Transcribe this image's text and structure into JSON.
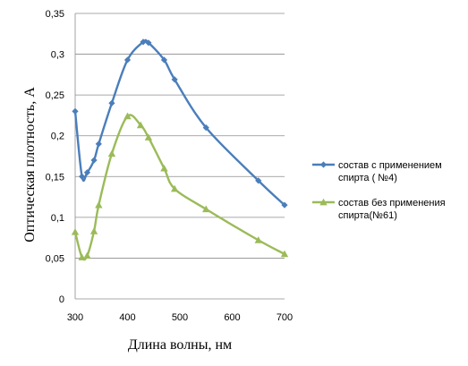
{
  "chart_data": {
    "type": "line",
    "xlabel": "Длина волны, нм",
    "ylabel": "Оптическая плотность, А",
    "xlim": [
      300,
      700
    ],
    "ylim": [
      0,
      0.35
    ],
    "x_ticks": [
      "300",
      "400",
      "500",
      "600",
      "700"
    ],
    "y_ticks": [
      "0",
      "0,05",
      "0,1",
      "0,15",
      "0,2",
      "0,25",
      "0,3",
      "0,35"
    ],
    "grid": "horizontal",
    "legend": "right",
    "series": [
      {
        "name": "состав с применением спирта ( №4)",
        "legend_lines": [
          "состав с применением",
          "спирта ( №4)"
        ],
        "color": "#4a7ebb",
        "marker": "diamond",
        "x": [
          300,
          313,
          323,
          336,
          345,
          370,
          400,
          430,
          440,
          470,
          490,
          550,
          650,
          700
        ],
        "y": [
          0.23,
          0.15,
          0.155,
          0.17,
          0.19,
          0.24,
          0.293,
          0.315,
          0.314,
          0.293,
          0.269,
          0.21,
          0.145,
          0.115
        ]
      },
      {
        "name": "состав без применения спирта(№61)",
        "legend_lines": [
          "состав без применения",
          "спирта(№61)"
        ],
        "color": "#9bbb59",
        "marker": "triangle",
        "x": [
          300,
          313,
          323,
          336,
          345,
          370,
          400,
          425,
          440,
          470,
          490,
          550,
          650,
          700
        ],
        "y": [
          0.082,
          0.051,
          0.053,
          0.083,
          0.115,
          0.178,
          0.224,
          0.213,
          0.198,
          0.16,
          0.135,
          0.11,
          0.072,
          0.055
        ]
      }
    ]
  }
}
